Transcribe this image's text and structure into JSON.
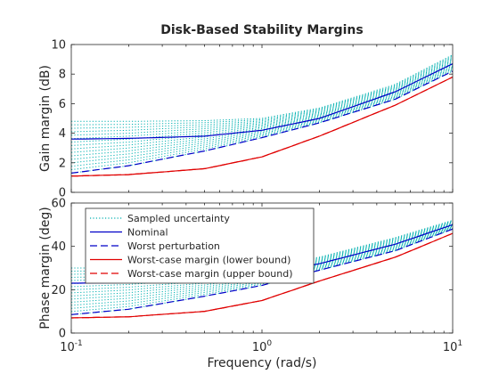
{
  "chart_data": {
    "type": "line",
    "title": "Disk-Based Stability Margins",
    "xlabel": "Frequency (rad/s)",
    "x_scale": "log",
    "xlim": [
      0.1,
      10
    ],
    "x_ticks": [
      {
        "value": 0.1,
        "base": "10",
        "exp": "-1"
      },
      {
        "value": 1,
        "base": "10",
        "exp": "0"
      },
      {
        "value": 10,
        "base": "10",
        "exp": "1"
      }
    ],
    "legend": {
      "location": "top-left of lower panel",
      "entries": [
        {
          "label": "Sampled uncertainty",
          "color": "#00b0b0",
          "style": "dotted"
        },
        {
          "label": "Nominal",
          "color": "#0000c8",
          "style": "solid"
        },
        {
          "label": "Worst perturbation",
          "color": "#0000c8",
          "style": "dashed"
        },
        {
          "label": "Worst-case margin (lower bound)",
          "color": "#e00000",
          "style": "solid"
        },
        {
          "label": "Worst-case margin (upper bound)",
          "color": "#e00000",
          "style": "dashed"
        }
      ]
    },
    "panels": [
      {
        "name": "gain",
        "ylabel": "Gain margin (dB)",
        "ylim": [
          0,
          10
        ],
        "y_ticks": [
          0,
          2,
          4,
          6,
          8,
          10
        ],
        "x": [
          0.1,
          0.2,
          0.5,
          1,
          2,
          5,
          10
        ],
        "series": [
          {
            "name": "Nominal",
            "color": "#0000c8",
            "style": "solid",
            "values": [
              3.6,
              3.65,
              3.8,
              4.2,
              5.0,
              6.8,
              8.7
            ]
          },
          {
            "name": "Worst perturbation",
            "color": "#0000c8",
            "style": "dashed",
            "values": [
              1.3,
              1.8,
              2.8,
              3.7,
              4.7,
              6.3,
              8.2
            ]
          },
          {
            "name": "Worst-case margin (lower bound)",
            "color": "#e00000",
            "style": "solid",
            "values": [
              1.1,
              1.2,
              1.6,
              2.4,
              3.8,
              5.9,
              7.8
            ]
          },
          {
            "name": "Worst-case margin (upper bound)",
            "color": "#e00000",
            "style": "dashed",
            "values": [
              1.1,
              1.2,
              1.6,
              2.4,
              3.8,
              5.9,
              7.8
            ]
          }
        ],
        "sampled_band": {
          "low": [
            1.3,
            1.8,
            2.8,
            3.7,
            4.7,
            6.3,
            8.2
          ],
          "high": [
            4.8,
            4.8,
            4.85,
            5.0,
            5.7,
            7.3,
            9.3
          ],
          "count": 16
        }
      },
      {
        "name": "phase",
        "ylabel": "Phase margin (deg)",
        "ylim": [
          0,
          60
        ],
        "y_ticks": [
          0,
          20,
          40,
          60
        ],
        "x": [
          0.1,
          0.2,
          0.5,
          1,
          2,
          5,
          10
        ],
        "series": [
          {
            "name": "Nominal",
            "color": "#0000c8",
            "style": "solid",
            "values": [
              23,
              23.3,
              24,
              27,
              32,
              41,
              50
            ]
          },
          {
            "name": "Worst perturbation",
            "color": "#0000c8",
            "style": "dashed",
            "values": [
              8.5,
              11,
              17,
              22,
              29,
              38,
              48
            ]
          },
          {
            "name": "Worst-case margin (lower bound)",
            "color": "#e00000",
            "style": "solid",
            "values": [
              7,
              7.5,
              10,
              15,
              24,
              35,
              46
            ]
          },
          {
            "name": "Worst-case margin (upper bound)",
            "color": "#e00000",
            "style": "dashed",
            "values": [
              7,
              7.5,
              10,
              15,
              24,
              35,
              46
            ]
          }
        ],
        "sampled_band": {
          "low": [
            8.5,
            11,
            17,
            22,
            29,
            38,
            48
          ],
          "high": [
            30,
            30,
            30,
            31,
            35,
            44,
            52
          ],
          "count": 16
        }
      }
    ]
  }
}
